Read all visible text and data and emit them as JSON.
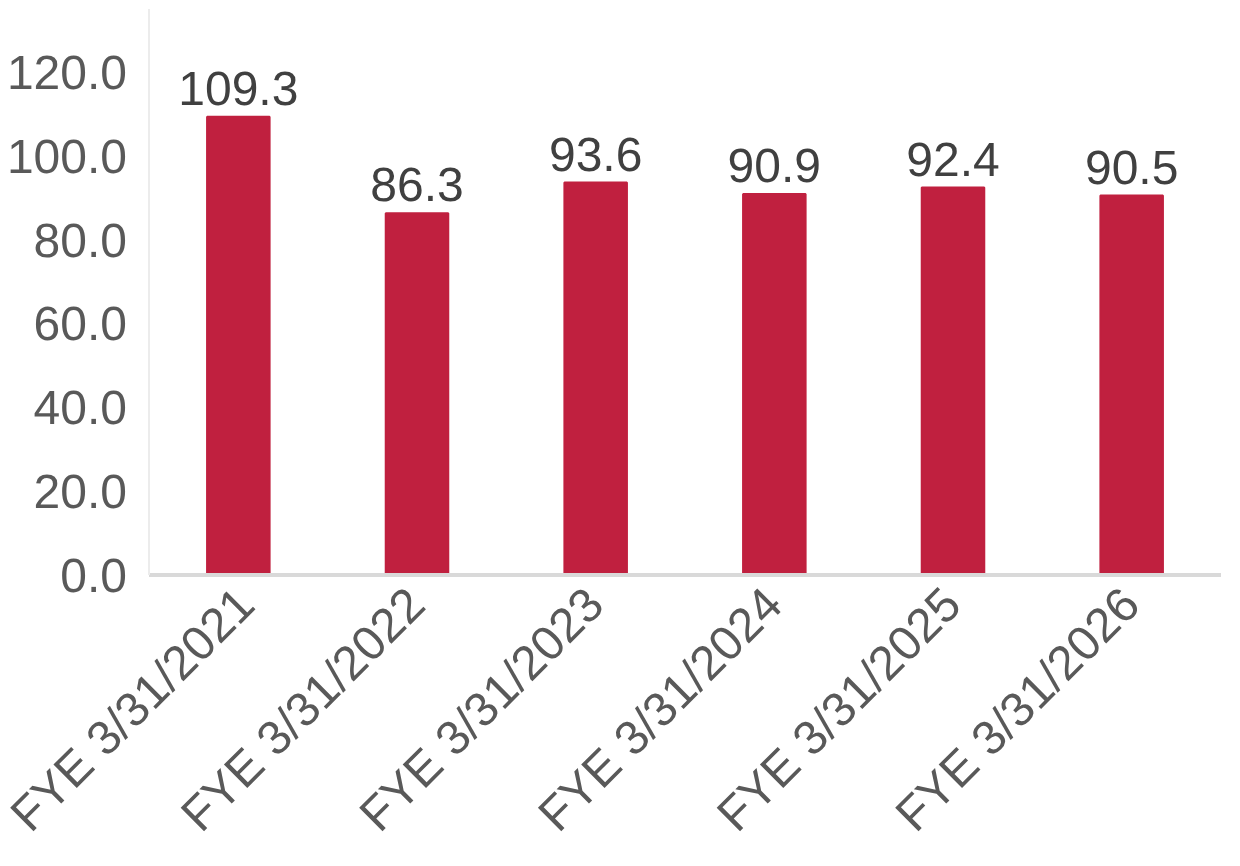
{
  "chart_data": {
    "type": "bar",
    "categories": [
      "FYE 3/31/2021",
      "FYE 3/31/2022",
      "FYE 3/31/2023",
      "FYE 3/31/2024",
      "FYE 3/31/2025",
      "FYE 3/31/2026"
    ],
    "values": [
      109.3,
      86.3,
      93.6,
      90.9,
      92.4,
      90.5
    ],
    "color": "#c0203f",
    "ylim": [
      0,
      135
    ],
    "yticks": [
      {
        "value": 0,
        "label": "0.0"
      },
      {
        "value": 20,
        "label": "20.0"
      },
      {
        "value": 40,
        "label": "40.0"
      },
      {
        "value": 60,
        "label": "60.0"
      },
      {
        "value": 80,
        "label": "80.0"
      },
      {
        "value": 100,
        "label": "100.0"
      },
      {
        "value": 120,
        "label": "120.0"
      }
    ],
    "data_labels": true
  }
}
